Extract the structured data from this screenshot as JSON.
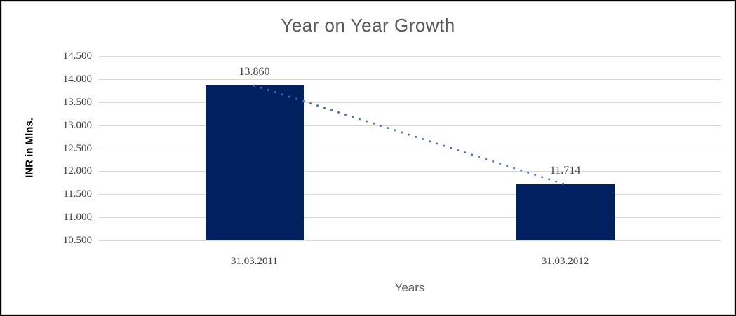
{
  "chart_data": {
    "type": "bar",
    "title": "Year on Year Growth",
    "xlabel": "Years",
    "ylabel": "INR in Mlns.",
    "categories": [
      "31.03.2011",
      "31.03.2012"
    ],
    "values": [
      13.86,
      11.714
    ],
    "data_labels": [
      "13.860",
      "11.714"
    ],
    "y_ticks": [
      "14.500",
      "14.000",
      "13.500",
      "13.000",
      "12.500",
      "12.000",
      "11.500",
      "11.000",
      "10.500"
    ],
    "ylim": [
      10.5,
      14.5
    ],
    "grid": true,
    "legend_position": "none",
    "trendline": {
      "style": "dotted",
      "points": [
        13.86,
        11.714
      ]
    },
    "colors": {
      "bar_fill": "#002060",
      "trendline": "#4472c4",
      "gridline": "#d9d9d9",
      "title_text": "#595959",
      "tick_text": "#3f3f3f",
      "axis_title_text": "#595959",
      "y_axis_title_text": "#000000",
      "outer_border": "#000000",
      "inner_border": "#d3d3d3"
    }
  }
}
